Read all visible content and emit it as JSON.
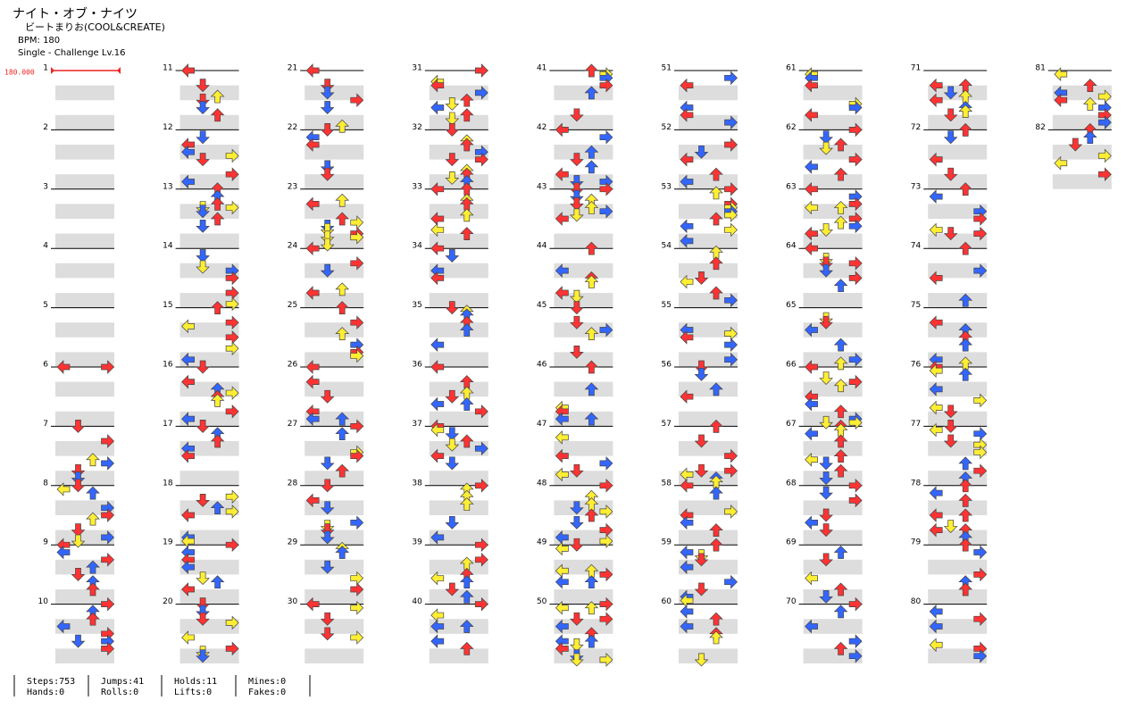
{
  "header": {
    "title": "ナイト・オブ・ナイツ",
    "artist": "ビートまりお(COOL&CREATE)",
    "bpm": "BPM: 180",
    "difficulty": "Single - Challenge Lv.16"
  },
  "bpm_marker": "180.000",
  "measures": [
    1,
    2,
    3,
    4,
    5,
    6,
    7,
    8,
    9,
    10,
    11,
    12,
    13,
    14,
    15,
    16,
    17,
    18,
    19,
    20,
    21,
    22,
    23,
    24,
    25,
    26,
    27,
    28,
    29,
    30,
    31,
    32,
    33,
    34,
    35,
    36,
    37,
    38,
    39,
    40,
    41,
    42,
    43,
    44,
    45,
    46,
    47,
    48,
    49,
    50,
    51,
    52,
    53,
    54,
    55,
    56,
    57,
    58,
    59,
    60,
    61,
    62,
    63,
    64,
    65,
    66,
    67,
    68,
    69,
    70,
    71,
    72,
    73,
    74,
    75,
    76,
    77,
    78,
    79,
    80,
    81,
    82
  ],
  "stats": [
    [
      "Steps:753",
      "Hands:0"
    ],
    [
      "Jumps:41",
      "Rolls:0"
    ],
    [
      "Holds:11",
      "Lifts:0"
    ],
    [
      "Mines:0",
      "Fakes:0"
    ]
  ]
}
